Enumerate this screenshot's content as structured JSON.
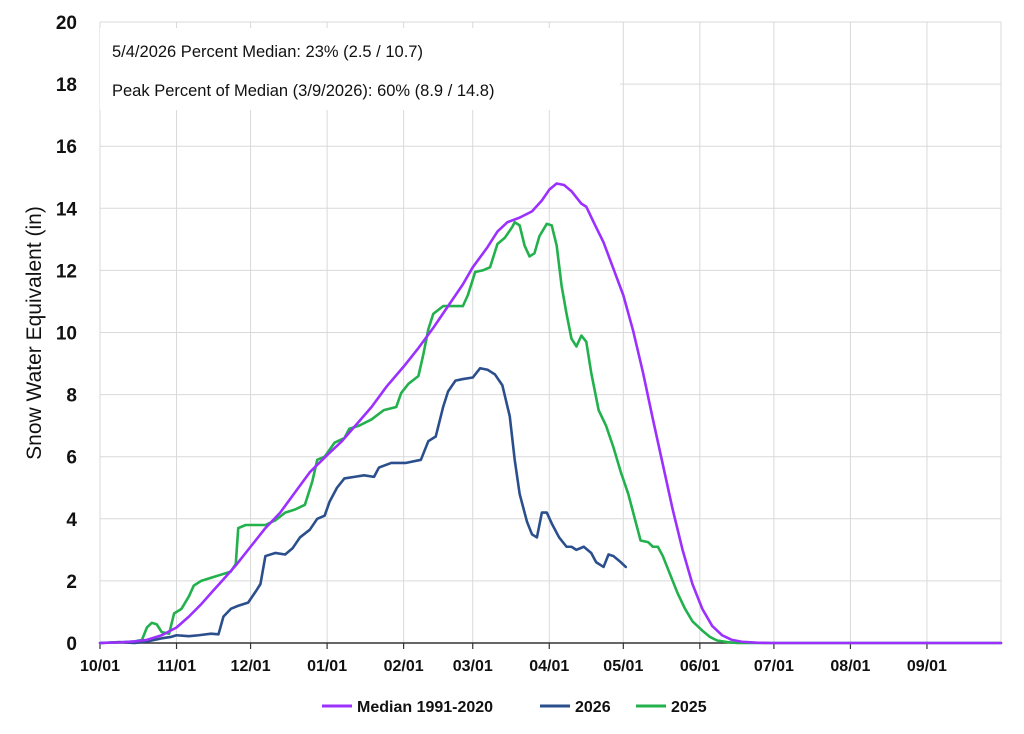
{
  "chart_data": {
    "type": "line",
    "xlabel": "",
    "ylabel": "Snow Water Equivalent (in)",
    "ylim": [
      0,
      20
    ],
    "yticks": [
      "0",
      "2",
      "4",
      "6",
      "8",
      "10",
      "12",
      "14",
      "16",
      "18",
      "20"
    ],
    "xlim": [
      0,
      365
    ],
    "xticks": [
      {
        "label": "10/01",
        "day": 0
      },
      {
        "label": "11/01",
        "day": 31
      },
      {
        "label": "12/01",
        "day": 61
      },
      {
        "label": "01/01",
        "day": 92
      },
      {
        "label": "02/01",
        "day": 123
      },
      {
        "label": "03/01",
        "day": 151
      },
      {
        "label": "04/01",
        "day": 182
      },
      {
        "label": "05/01",
        "day": 212
      },
      {
        "label": "06/01",
        "day": 243
      },
      {
        "label": "07/01",
        "day": 273
      },
      {
        "label": "08/01",
        "day": 304
      },
      {
        "label": "09/01",
        "day": 335
      }
    ],
    "grid": true,
    "legend_position": "bottom",
    "annotations": [
      "5/4/2026 Percent Median: 23% (2.5 / 10.7)",
      "Peak Percent of Median (3/9/2026): 60% (8.9 / 14.8)"
    ],
    "series": [
      {
        "name": "Median 1991-2020",
        "color": "#9B30FF",
        "points": [
          [
            0,
            0
          ],
          [
            8,
            0.02
          ],
          [
            14,
            0.05
          ],
          [
            19,
            0.1
          ],
          [
            25,
            0.25
          ],
          [
            31,
            0.5
          ],
          [
            36,
            0.85
          ],
          [
            41,
            1.25
          ],
          [
            46,
            1.7
          ],
          [
            50,
            2.05
          ],
          [
            55,
            2.5
          ],
          [
            61,
            3.1
          ],
          [
            67,
            3.7
          ],
          [
            73,
            4.2
          ],
          [
            79,
            4.85
          ],
          [
            85,
            5.5
          ],
          [
            92,
            6.05
          ],
          [
            98,
            6.5
          ],
          [
            104,
            7.05
          ],
          [
            110,
            7.6
          ],
          [
            116,
            8.25
          ],
          [
            123,
            8.9
          ],
          [
            129,
            9.5
          ],
          [
            135,
            10.15
          ],
          [
            141,
            10.85
          ],
          [
            147,
            11.55
          ],
          [
            151,
            12.1
          ],
          [
            157,
            12.75
          ],
          [
            161,
            13.25
          ],
          [
            165,
            13.55
          ],
          [
            170,
            13.7
          ],
          [
            175,
            13.9
          ],
          [
            179,
            14.25
          ],
          [
            182,
            14.6
          ],
          [
            185,
            14.8
          ],
          [
            188,
            14.75
          ],
          [
            191,
            14.55
          ],
          [
            193,
            14.35
          ],
          [
            195,
            14.15
          ],
          [
            197,
            14.05
          ],
          [
            200,
            13.55
          ],
          [
            204,
            12.9
          ],
          [
            208,
            12.05
          ],
          [
            212,
            11.2
          ],
          [
            216,
            10.05
          ],
          [
            220,
            8.7
          ],
          [
            224,
            7.2
          ],
          [
            228,
            5.75
          ],
          [
            232,
            4.3
          ],
          [
            236,
            3.0
          ],
          [
            240,
            1.9
          ],
          [
            244,
            1.1
          ],
          [
            248,
            0.55
          ],
          [
            252,
            0.25
          ],
          [
            256,
            0.1
          ],
          [
            260,
            0.04
          ],
          [
            266,
            0.01
          ],
          [
            272,
            0
          ],
          [
            365,
            0
          ]
        ]
      },
      {
        "name": "2026",
        "color": "#2B4F8C",
        "points": [
          [
            0,
            0
          ],
          [
            8,
            0.03
          ],
          [
            14,
            0
          ],
          [
            19,
            0.05
          ],
          [
            25,
            0.15
          ],
          [
            29,
            0.2
          ],
          [
            31,
            0.25
          ],
          [
            36,
            0.22
          ],
          [
            40,
            0.25
          ],
          [
            45,
            0.3
          ],
          [
            48,
            0.28
          ],
          [
            50,
            0.85
          ],
          [
            53,
            1.1
          ],
          [
            56,
            1.2
          ],
          [
            60,
            1.3
          ],
          [
            63,
            1.65
          ],
          [
            65,
            1.9
          ],
          [
            67,
            2.8
          ],
          [
            71,
            2.9
          ],
          [
            75,
            2.85
          ],
          [
            78,
            3.05
          ],
          [
            81,
            3.4
          ],
          [
            85,
            3.65
          ],
          [
            88,
            4.0
          ],
          [
            91,
            4.1
          ],
          [
            93,
            4.55
          ],
          [
            96,
            5.0
          ],
          [
            99,
            5.3
          ],
          [
            103,
            5.35
          ],
          [
            107,
            5.4
          ],
          [
            111,
            5.35
          ],
          [
            113,
            5.65
          ],
          [
            118,
            5.8
          ],
          [
            124,
            5.8
          ],
          [
            130,
            5.9
          ],
          [
            133,
            6.5
          ],
          [
            136,
            6.65
          ],
          [
            139,
            7.6
          ],
          [
            141,
            8.1
          ],
          [
            144,
            8.45
          ],
          [
            147,
            8.5
          ],
          [
            151,
            8.55
          ],
          [
            154,
            8.85
          ],
          [
            157,
            8.8
          ],
          [
            160,
            8.65
          ],
          [
            163,
            8.3
          ],
          [
            166,
            7.3
          ],
          [
            168,
            5.9
          ],
          [
            170,
            4.8
          ],
          [
            173,
            3.9
          ],
          [
            175,
            3.5
          ],
          [
            177,
            3.4
          ],
          [
            179,
            4.2
          ],
          [
            181,
            4.2
          ],
          [
            183,
            3.85
          ],
          [
            186,
            3.4
          ],
          [
            189,
            3.1
          ],
          [
            191,
            3.1
          ],
          [
            193,
            3.0
          ],
          [
            196,
            3.1
          ],
          [
            199,
            2.9
          ],
          [
            201,
            2.6
          ],
          [
            204,
            2.45
          ],
          [
            206,
            2.85
          ],
          [
            208,
            2.8
          ],
          [
            211,
            2.6
          ],
          [
            213,
            2.45
          ]
        ]
      },
      {
        "name": "2025",
        "color": "#22B14C",
        "points": [
          [
            0,
            0
          ],
          [
            8,
            0.02
          ],
          [
            14,
            0.05
          ],
          [
            17,
            0.1
          ],
          [
            19,
            0.5
          ],
          [
            21,
            0.65
          ],
          [
            23,
            0.6
          ],
          [
            25,
            0.35
          ],
          [
            28,
            0.3
          ],
          [
            30,
            0.95
          ],
          [
            33,
            1.1
          ],
          [
            36,
            1.5
          ],
          [
            38,
            1.85
          ],
          [
            41,
            2.0
          ],
          [
            45,
            2.1
          ],
          [
            49,
            2.2
          ],
          [
            53,
            2.3
          ],
          [
            55,
            2.55
          ],
          [
            56,
            3.7
          ],
          [
            59,
            3.8
          ],
          [
            63,
            3.8
          ],
          [
            67,
            3.8
          ],
          [
            71,
            3.95
          ],
          [
            75,
            4.2
          ],
          [
            79,
            4.3
          ],
          [
            83,
            4.45
          ],
          [
            86,
            5.2
          ],
          [
            88,
            5.9
          ],
          [
            91,
            6.0
          ],
          [
            95,
            6.45
          ],
          [
            99,
            6.6
          ],
          [
            101,
            6.9
          ],
          [
            105,
            7.0
          ],
          [
            110,
            7.2
          ],
          [
            115,
            7.5
          ],
          [
            120,
            7.6
          ],
          [
            122,
            8.05
          ],
          [
            125,
            8.35
          ],
          [
            129,
            8.6
          ],
          [
            131,
            9.3
          ],
          [
            133,
            10.1
          ],
          [
            135,
            10.6
          ],
          [
            139,
            10.85
          ],
          [
            143,
            10.85
          ],
          [
            147,
            10.85
          ],
          [
            149,
            11.2
          ],
          [
            152,
            11.95
          ],
          [
            155,
            12.0
          ],
          [
            158,
            12.1
          ],
          [
            161,
            12.85
          ],
          [
            164,
            13.05
          ],
          [
            167,
            13.4
          ],
          [
            168,
            13.55
          ],
          [
            170,
            13.45
          ],
          [
            172,
            12.8
          ],
          [
            174,
            12.45
          ],
          [
            176,
            12.55
          ],
          [
            178,
            13.1
          ],
          [
            181,
            13.5
          ],
          [
            183,
            13.45
          ],
          [
            185,
            12.8
          ],
          [
            187,
            11.5
          ],
          [
            189,
            10.6
          ],
          [
            191,
            9.8
          ],
          [
            193,
            9.55
          ],
          [
            195,
            9.9
          ],
          [
            197,
            9.7
          ],
          [
            199,
            8.7
          ],
          [
            202,
            7.5
          ],
          [
            205,
            7.0
          ],
          [
            208,
            6.3
          ],
          [
            211,
            5.5
          ],
          [
            214,
            4.8
          ],
          [
            217,
            3.9
          ],
          [
            219,
            3.3
          ],
          [
            222,
            3.25
          ],
          [
            224,
            3.1
          ],
          [
            226,
            3.1
          ],
          [
            228,
            2.8
          ],
          [
            231,
            2.2
          ],
          [
            234,
            1.6
          ],
          [
            237,
            1.1
          ],
          [
            240,
            0.7
          ],
          [
            244,
            0.4
          ],
          [
            247,
            0.2
          ],
          [
            250,
            0.08
          ],
          [
            254,
            0.03
          ],
          [
            258,
            0
          ],
          [
            365,
            0
          ]
        ]
      }
    ]
  }
}
